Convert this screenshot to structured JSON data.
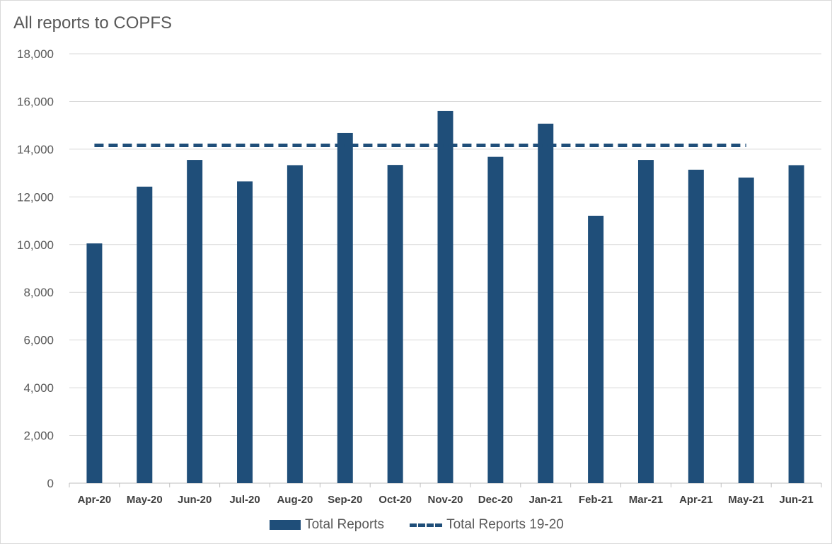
{
  "chart_data": {
    "type": "bar",
    "title": "All reports to COPFS",
    "xlabel": "",
    "ylabel": "",
    "categories": [
      "Apr-20",
      "May-20",
      "Jun-20",
      "Jul-20",
      "Aug-20",
      "Sep-20",
      "Oct-20",
      "Nov-20",
      "Dec-20",
      "Jan-21",
      "Feb-21",
      "Mar-21",
      "Apr-21",
      "May-21",
      "Jun-21"
    ],
    "series": [
      {
        "name": "Total Reports",
        "kind": "bar",
        "color": "#1f4e79",
        "values": [
          10050,
          12430,
          13550,
          12650,
          13330,
          14680,
          13340,
          15600,
          13680,
          15070,
          11210,
          13550,
          13140,
          12810,
          13330
        ]
      },
      {
        "name": "Total Reports 19-20",
        "kind": "dashed-line",
        "color": "#1f4e79",
        "values": [
          14160,
          14160,
          14160,
          14160,
          14160,
          14160,
          14160,
          14160,
          14160,
          14160,
          14160,
          14160,
          14160,
          14160,
          null
        ]
      }
    ],
    "ylim": [
      0,
      18000
    ],
    "yticks": [
      "0",
      "2,000",
      "4,000",
      "6,000",
      "8,000",
      "10,000",
      "12,000",
      "14,000",
      "16,000",
      "18,000"
    ],
    "ytick_values": [
      0,
      2000,
      4000,
      6000,
      8000,
      10000,
      12000,
      14000,
      16000,
      18000
    ],
    "grid": true,
    "legend_position": "bottom"
  }
}
